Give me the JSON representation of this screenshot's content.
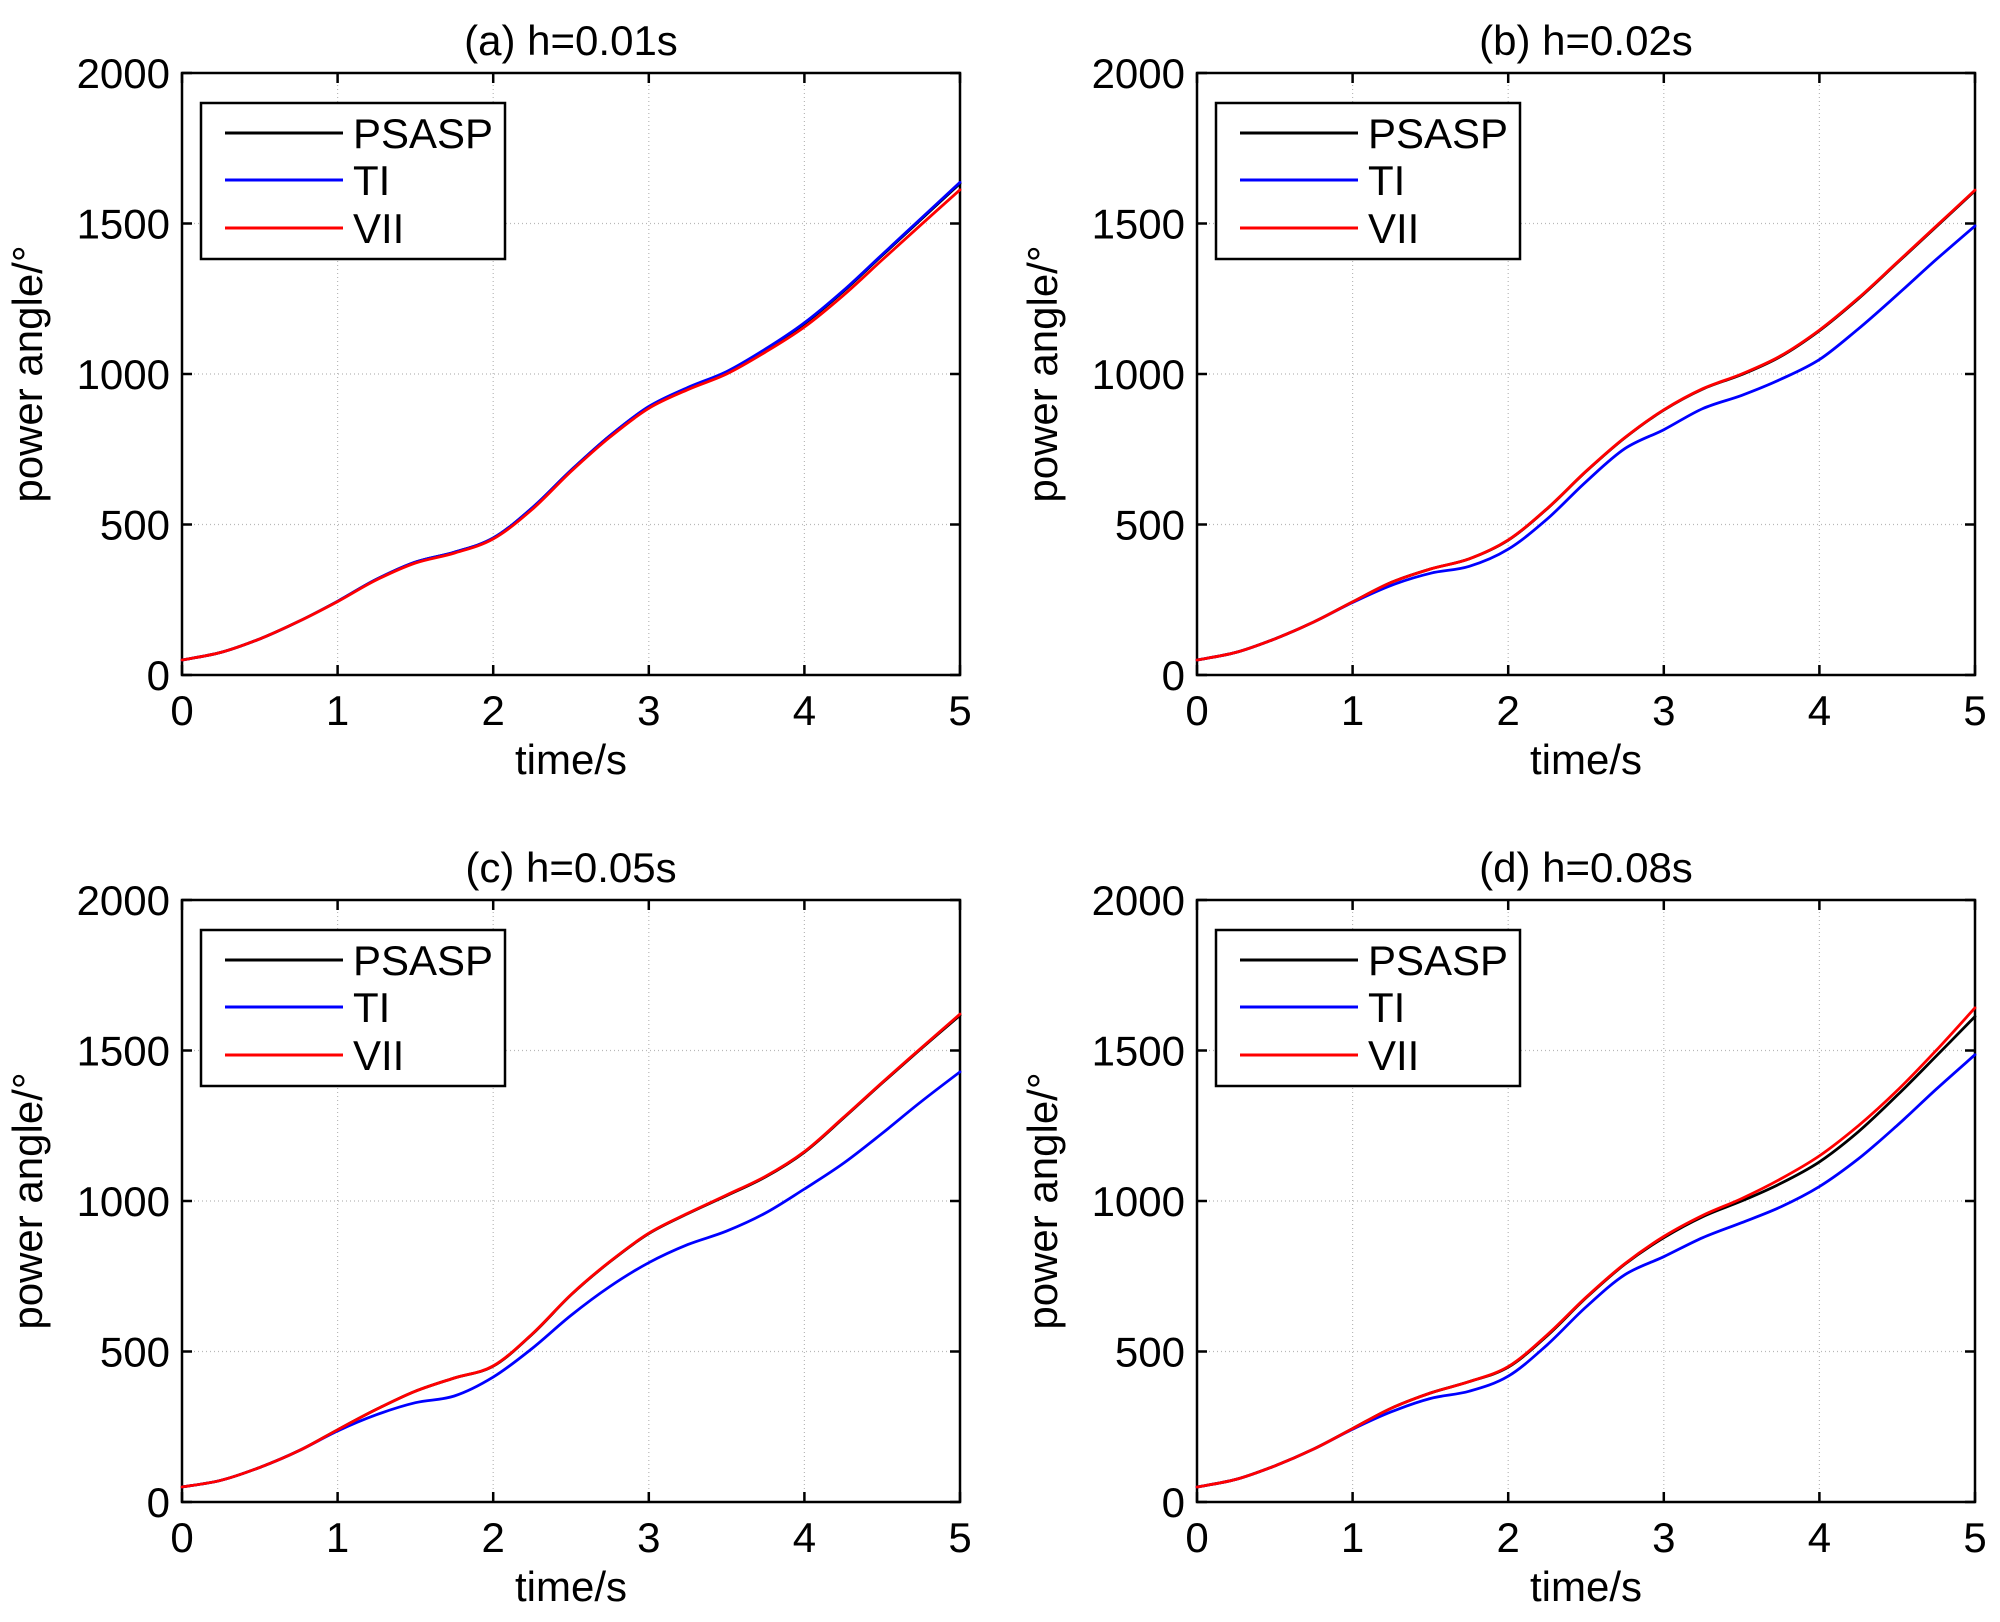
{
  "figure": {
    "background": "#ffffff",
    "rows": 2,
    "cols": 2,
    "grid_color": "#b8b8b8",
    "axis_color": "#000000"
  },
  "chart_data": [
    {
      "id": "a",
      "type": "line",
      "title": "(a) h=0.01s",
      "xlabel": "time/s",
      "ylabel": "power angle/°",
      "xlim": [
        0,
        5
      ],
      "ylim": [
        0,
        2000
      ],
      "xticks": [
        0,
        1,
        2,
        3,
        4,
        5
      ],
      "yticks": [
        0,
        500,
        1000,
        1500,
        2000
      ],
      "grid": true,
      "legend": {
        "position": "top-left",
        "entries": [
          "PSASP",
          "TI",
          "VII"
        ]
      },
      "x": [
        0,
        0.25,
        0.5,
        0.75,
        1,
        1.25,
        1.5,
        1.75,
        2,
        2.25,
        2.5,
        2.75,
        3,
        3.25,
        3.5,
        3.75,
        4,
        4.25,
        4.5,
        4.75,
        5
      ],
      "series": [
        {
          "name": "PSASP",
          "color": "#000000",
          "values": [
            50,
            75,
            120,
            178,
            245,
            318,
            375,
            408,
            455,
            555,
            680,
            795,
            891,
            953,
            1006,
            1081,
            1167,
            1274,
            1394,
            1514,
            1633
          ]
        },
        {
          "name": "TI",
          "color": "#0000ff",
          "values": [
            50,
            75,
            120,
            178,
            245,
            318,
            375,
            408,
            455,
            555,
            680,
            795,
            892,
            955,
            1008,
            1083,
            1170,
            1277,
            1397,
            1517,
            1637
          ]
        },
        {
          "name": "VII",
          "color": "#ff0000",
          "values": [
            50,
            75,
            120,
            178,
            244,
            316,
            372,
            405,
            452,
            550,
            676,
            790,
            886,
            948,
            1000,
            1073,
            1156,
            1261,
            1379,
            1496,
            1612
          ]
        }
      ]
    },
    {
      "id": "b",
      "type": "line",
      "title": "(b) h=0.02s",
      "xlabel": "time/s",
      "ylabel": "power angle/°",
      "xlim": [
        0,
        5
      ],
      "ylim": [
        0,
        2000
      ],
      "xticks": [
        0,
        1,
        2,
        3,
        4,
        5
      ],
      "yticks": [
        0,
        500,
        1000,
        1500,
        2000
      ],
      "grid": true,
      "legend": {
        "position": "top-left",
        "entries": [
          "PSASP",
          "TI",
          "VII"
        ]
      },
      "x": [
        0,
        0.25,
        0.5,
        0.75,
        1,
        1.25,
        1.5,
        1.75,
        2,
        2.25,
        2.5,
        2.75,
        3,
        3.25,
        3.5,
        3.75,
        4,
        4.25,
        4.5,
        4.75,
        5
      ],
      "series": [
        {
          "name": "PSASP",
          "color": "#000000",
          "values": [
            50,
            75,
            120,
            176,
            243,
            308,
            352,
            386,
            448,
            552,
            676,
            788,
            880,
            950,
            998,
            1058,
            1144,
            1250,
            1369,
            1489,
            1609
          ]
        },
        {
          "name": "TI",
          "color": "#0000ff",
          "values": [
            50,
            75,
            120,
            176,
            241,
            298,
            338,
            361,
            418,
            518,
            642,
            752,
            815,
            885,
            929,
            982,
            1048,
            1150,
            1263,
            1380,
            1492
          ]
        },
        {
          "name": "VII",
          "color": "#ff0000",
          "values": [
            50,
            75,
            120,
            176,
            243,
            308,
            352,
            386,
            449,
            553,
            677,
            789,
            881,
            951,
            1000,
            1060,
            1146,
            1252,
            1371,
            1491,
            1611
          ]
        }
      ]
    },
    {
      "id": "c",
      "type": "line",
      "title": "(c) h=0.05s",
      "xlabel": "time/s",
      "ylabel": "power angle/°",
      "xlim": [
        0,
        5
      ],
      "ylim": [
        0,
        2000
      ],
      "xticks": [
        0,
        1,
        2,
        3,
        4,
        5
      ],
      "yticks": [
        0,
        500,
        1000,
        1500,
        2000
      ],
      "grid": true,
      "legend": {
        "position": "top-left",
        "entries": [
          "PSASP",
          "TI",
          "VII"
        ]
      },
      "x": [
        0,
        0.25,
        0.5,
        0.75,
        1,
        1.25,
        1.5,
        1.75,
        2,
        2.25,
        2.5,
        2.75,
        3,
        3.25,
        3.5,
        3.75,
        4,
        4.25,
        4.5,
        4.75,
        5
      ],
      "series": [
        {
          "name": "PSASP",
          "color": "#000000",
          "values": [
            50,
            72,
            115,
            170,
            240,
            308,
            368,
            412,
            451,
            557,
            688,
            798,
            892,
            958,
            1018,
            1080,
            1162,
            1275,
            1392,
            1506,
            1617
          ]
        },
        {
          "name": "TI",
          "color": "#0000ff",
          "values": [
            50,
            72,
            115,
            170,
            236,
            290,
            330,
            352,
            415,
            510,
            620,
            716,
            795,
            855,
            900,
            960,
            1040,
            1125,
            1225,
            1330,
            1429
          ]
        },
        {
          "name": "VII",
          "color": "#ff0000",
          "values": [
            50,
            72,
            115,
            170,
            240,
            308,
            368,
            412,
            452,
            558,
            689,
            799,
            893,
            959,
            1020,
            1082,
            1164,
            1277,
            1394,
            1508,
            1621
          ]
        }
      ]
    },
    {
      "id": "d",
      "type": "line",
      "title": "(d) h=0.08s",
      "xlabel": "time/s",
      "ylabel": "power angle/°",
      "xlim": [
        0,
        5
      ],
      "ylim": [
        0,
        2000
      ],
      "xticks": [
        0,
        1,
        2,
        3,
        4,
        5
      ],
      "yticks": [
        0,
        500,
        1000,
        1500,
        2000
      ],
      "grid": true,
      "legend": {
        "position": "top-left",
        "entries": [
          "PSASP",
          "TI",
          "VII"
        ]
      },
      "x": [
        0,
        0.25,
        0.5,
        0.75,
        1,
        1.25,
        1.5,
        1.75,
        2,
        2.25,
        2.5,
        2.75,
        3,
        3.25,
        3.5,
        3.75,
        4,
        4.25,
        4.5,
        4.75,
        5
      ],
      "series": [
        {
          "name": "PSASP",
          "color": "#000000",
          "values": [
            50,
            75,
            120,
            176,
            244,
            312,
            362,
            400,
            448,
            552,
            678,
            790,
            878,
            948,
            1000,
            1058,
            1130,
            1230,
            1351,
            1481,
            1613
          ]
        },
        {
          "name": "TI",
          "color": "#0000ff",
          "values": [
            50,
            75,
            120,
            176,
            242,
            300,
            344,
            368,
            418,
            522,
            648,
            755,
            815,
            878,
            928,
            980,
            1048,
            1140,
            1251,
            1371,
            1486
          ]
        },
        {
          "name": "VII",
          "color": "#ff0000",
          "values": [
            50,
            75,
            120,
            176,
            244,
            312,
            362,
            400,
            450,
            555,
            680,
            792,
            882,
            952,
            1008,
            1073,
            1150,
            1250,
            1367,
            1500,
            1642
          ]
        }
      ]
    }
  ]
}
